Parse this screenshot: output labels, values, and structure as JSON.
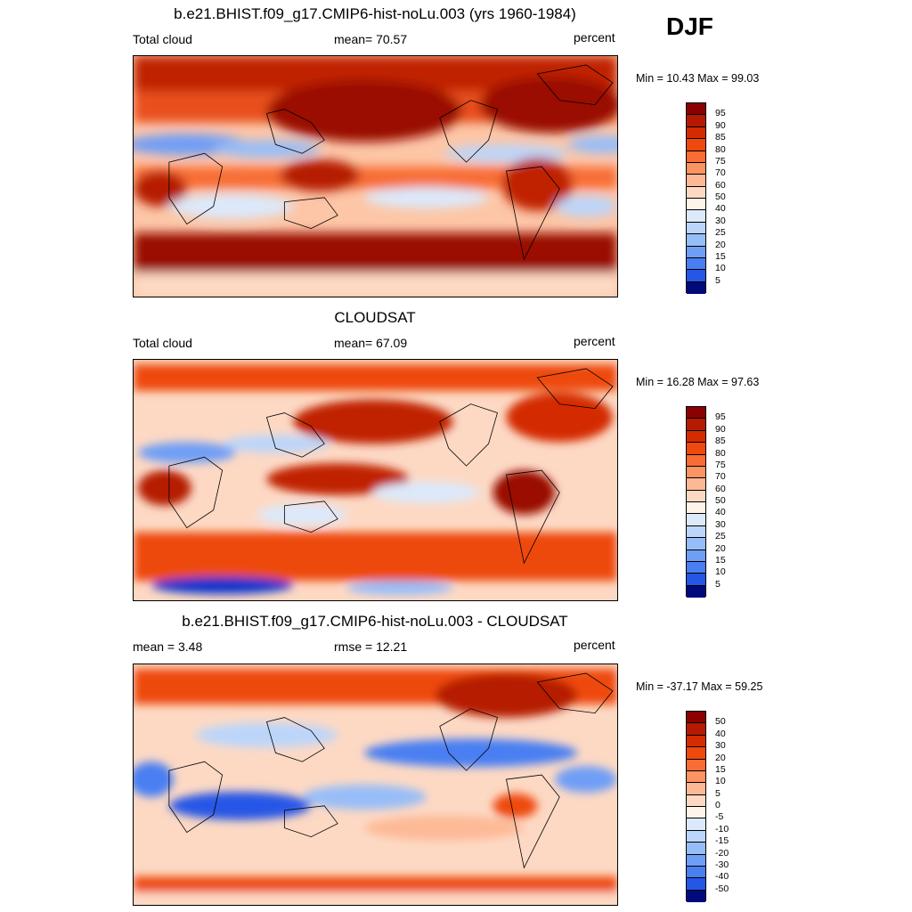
{
  "season": "DJF",
  "panels": [
    {
      "title": "b.e21.BHIST.f09_g17.CMIP6-hist-noLu.003 (yrs 1960-1984)",
      "left_label": "Total cloud",
      "center_label": "mean=  70.57",
      "right_label": "percent",
      "minmax": "Min =  10.43 Max =  99.03",
      "colorbar_labels": [
        "95",
        "90",
        "85",
        "80",
        "75",
        "70",
        "60",
        "50",
        "40",
        "30",
        "25",
        "20",
        "15",
        "10",
        "5"
      ]
    },
    {
      "title": "CLOUDSAT",
      "left_label": "Total cloud",
      "center_label": "mean=  67.09",
      "right_label": "percent",
      "minmax": "Min =  16.28 Max =  97.63",
      "colorbar_labels": [
        "95",
        "90",
        "85",
        "80",
        "75",
        "70",
        "60",
        "50",
        "40",
        "30",
        "25",
        "20",
        "15",
        "10",
        "5"
      ]
    },
    {
      "title": "b.e21.BHIST.f09_g17.CMIP6-hist-noLu.003 - CLOUDSAT",
      "left_label": "mean =   3.48",
      "center_label": "rmse =  12.21",
      "right_label": "percent",
      "minmax": "Min = -37.17 Max =  59.25",
      "colorbar_labels": [
        "50",
        "40",
        "30",
        "20",
        "15",
        "10",
        "5",
        "0",
        "-5",
        "-10",
        "-15",
        "-20",
        "-30",
        "-40",
        "-50"
      ]
    }
  ],
  "colorbar_colors": [
    "#8b0000",
    "#b51a00",
    "#d42c00",
    "#ee4a0e",
    "#f86d35",
    "#fb9363",
    "#fdb996",
    "#fdd9c4",
    "#fff4ea",
    "#dce9fb",
    "#bcd5fa",
    "#97bdf8",
    "#6f9ef6",
    "#4a7ff2",
    "#2656e6",
    "#0a34cc",
    "#051f9c",
    "#000a7a"
  ]
}
